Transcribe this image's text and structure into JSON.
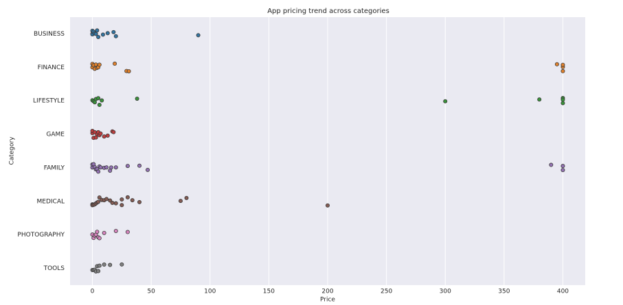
{
  "chart_data": {
    "type": "strip",
    "title": "App pricing trend across categories",
    "x_label": "Price",
    "y_label": "Category",
    "categories": [
      "BUSINESS",
      "FINANCE",
      "LIFESTYLE",
      "GAME",
      "FAMILY",
      "MEDICAL",
      "PHOTOGRAPHY",
      "TOOLS"
    ],
    "colors": [
      "#3274a1",
      "#e1812c",
      "#3a923a",
      "#c03d3e",
      "#9372b2",
      "#845b53",
      "#d684bd",
      "#7f7f7f"
    ],
    "values": [
      [
        0,
        0,
        0,
        0.99,
        1.99,
        2.99,
        3.99,
        4.99,
        8.99,
        12.99,
        17.99,
        19.99,
        89.99
      ],
      [
        0,
        0,
        0.99,
        1.99,
        2.99,
        3.99,
        4.99,
        5.99,
        18.99,
        28.99,
        30.99,
        394.99,
        399.99,
        399.99,
        399.99
      ],
      [
        0,
        0.99,
        1.99,
        2.99,
        4.99,
        5.99,
        7.99,
        37.99,
        299.99,
        379.99,
        399.99,
        399.99,
        399.99
      ],
      [
        0,
        0,
        0.99,
        1.99,
        2.99,
        3.99,
        4.99,
        5.99,
        6.99,
        9.99,
        12.99,
        16.99,
        17.99
      ],
      [
        0,
        0,
        0.99,
        1.99,
        2.99,
        3.99,
        4.99,
        5.99,
        6.99,
        9.99,
        11.99,
        14.99,
        15.99,
        19.99,
        29.99,
        39.99,
        46.99,
        389.99,
        399.99,
        399.99
      ],
      [
        0,
        0,
        0.99,
        1.99,
        2.99,
        3.99,
        4.99,
        5.99,
        7.99,
        9.99,
        11.99,
        14.99,
        16.99,
        19.99,
        24.99,
        24.99,
        29.99,
        33.99,
        39.99,
        74.99,
        79.99,
        199.99
      ],
      [
        0,
        0.99,
        1.99,
        2.99,
        3.99,
        4.99,
        5.99,
        9.99,
        19.99,
        29.99
      ],
      [
        0,
        0.99,
        1.99,
        2.99,
        3.99,
        4.99,
        5.99,
        9.99,
        14.99,
        24.99
      ]
    ],
    "xlim": [
      -19,
      419
    ],
    "xticks": [
      0,
      50,
      100,
      150,
      200,
      250,
      300,
      350,
      400
    ],
    "grid": true
  }
}
